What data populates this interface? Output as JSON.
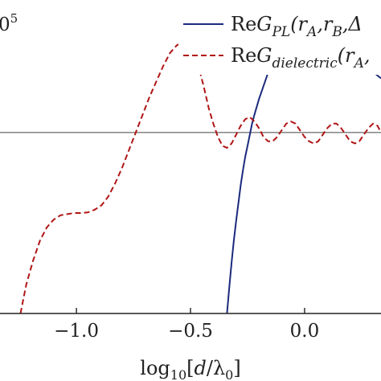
{
  "chart_data": {
    "type": "line",
    "xlabel_parts": {
      "pre": "log",
      "sub": "10",
      "mid": "[",
      "ital": "d",
      "slash": "/λ",
      "sub2": "0",
      "post": "]"
    },
    "xticks": [
      {
        "value": -1.0,
        "label": "−1.0"
      },
      {
        "value": -0.5,
        "label": "−0.5"
      },
      {
        "value": 0.0,
        "label": "0.0"
      }
    ],
    "xlim": [
      -1.335,
      0.335
    ],
    "ylim": [
      -0.82,
      0.6
    ],
    "corner_text": {
      "main": "0",
      "sup": "5"
    },
    "reference_line_y": 0.0,
    "colors": {
      "pl": "#1b2a7d",
      "dielectric": "#b01515",
      "reference": "#777777",
      "axis": "#222222"
    },
    "legend": [
      {
        "pre": "Re",
        "ital": "G",
        "sub": "PL",
        "post": "(r",
        "sub2": "A",
        "post2": ",r",
        "sub3": "B",
        "post3": ",Δ",
        "style": "solid",
        "color": "#1b2a7d"
      },
      {
        "pre": "Re",
        "ital": "G",
        "sub": "dielectric",
        "post": "(r",
        "sub2": "A",
        "post2": ",",
        "sub3": "",
        "post3": "",
        "style": "dashed",
        "color": "#b01515"
      }
    ],
    "series": [
      {
        "key": "pl",
        "style": "solid",
        "x": [
          -0.34,
          -0.33,
          -0.32,
          -0.31,
          -0.3,
          -0.29,
          -0.28,
          -0.27,
          -0.26,
          -0.25,
          -0.24,
          -0.23,
          -0.22,
          -0.2,
          -0.18,
          -0.16,
          -0.14,
          -0.12,
          -0.1,
          -0.08,
          -0.06,
          -0.04,
          -0.02,
          0.0,
          0.02,
          0.05,
          0.08,
          0.12,
          0.16,
          0.2,
          0.25,
          0.3,
          0.335
        ],
        "y": [
          -0.82,
          -0.7,
          -0.59,
          -0.49,
          -0.4,
          -0.32,
          -0.24,
          -0.17,
          -0.11,
          -0.06,
          -0.01,
          0.04,
          0.08,
          0.15,
          0.21,
          0.27,
          0.32,
          0.37,
          0.41,
          0.44,
          0.469,
          0.485,
          0.493,
          0.496,
          0.494,
          0.48,
          0.46,
          0.43,
          0.4,
          0.365,
          0.32,
          0.275,
          0.245
        ]
      },
      {
        "key": "dielectric",
        "style": "dashed",
        "x": [
          -1.245,
          -1.22,
          -1.19,
          -1.16,
          -1.13,
          -1.1,
          -1.07,
          -1.04,
          -1.01,
          -0.98,
          -0.95,
          -0.92,
          -0.89,
          -0.86,
          -0.83,
          -0.8,
          -0.77,
          -0.74,
          -0.71,
          -0.68,
          -0.65,
          -0.62,
          -0.59,
          -0.56,
          -0.53,
          -0.5,
          -0.48,
          -0.46,
          -0.44,
          -0.42,
          -0.4,
          -0.38,
          -0.36,
          -0.34,
          -0.32,
          -0.3,
          -0.28,
          -0.26,
          -0.24,
          -0.22,
          -0.2,
          -0.18,
          -0.16,
          -0.14,
          -0.12,
          -0.1,
          -0.08,
          -0.06,
          -0.04,
          -0.02,
          0.0,
          0.02,
          0.04,
          0.06,
          0.08,
          0.1,
          0.12,
          0.14,
          0.16,
          0.18,
          0.2,
          0.22,
          0.24,
          0.26,
          0.28,
          0.3,
          0.32,
          0.335
        ],
        "y": [
          -0.82,
          -0.69,
          -0.58,
          -0.49,
          -0.43,
          -0.395,
          -0.375,
          -0.37,
          -0.365,
          -0.365,
          -0.362,
          -0.35,
          -0.33,
          -0.29,
          -0.23,
          -0.16,
          -0.08,
          0.0,
          0.08,
          0.16,
          0.23,
          0.3,
          0.36,
          0.395,
          0.41,
          0.39,
          0.35,
          0.28,
          0.2,
          0.11,
          0.04,
          -0.02,
          -0.06,
          -0.07,
          -0.05,
          -0.01,
          0.03,
          0.06,
          0.07,
          0.05,
          0.02,
          -0.02,
          -0.04,
          -0.04,
          -0.02,
          0.01,
          0.04,
          0.05,
          0.04,
          0.01,
          -0.02,
          -0.04,
          -0.05,
          -0.04,
          -0.01,
          0.02,
          0.04,
          0.04,
          0.02,
          -0.01,
          -0.04,
          -0.05,
          -0.04,
          -0.01,
          0.02,
          0.04,
          0.03,
          0.0
        ]
      }
    ]
  }
}
